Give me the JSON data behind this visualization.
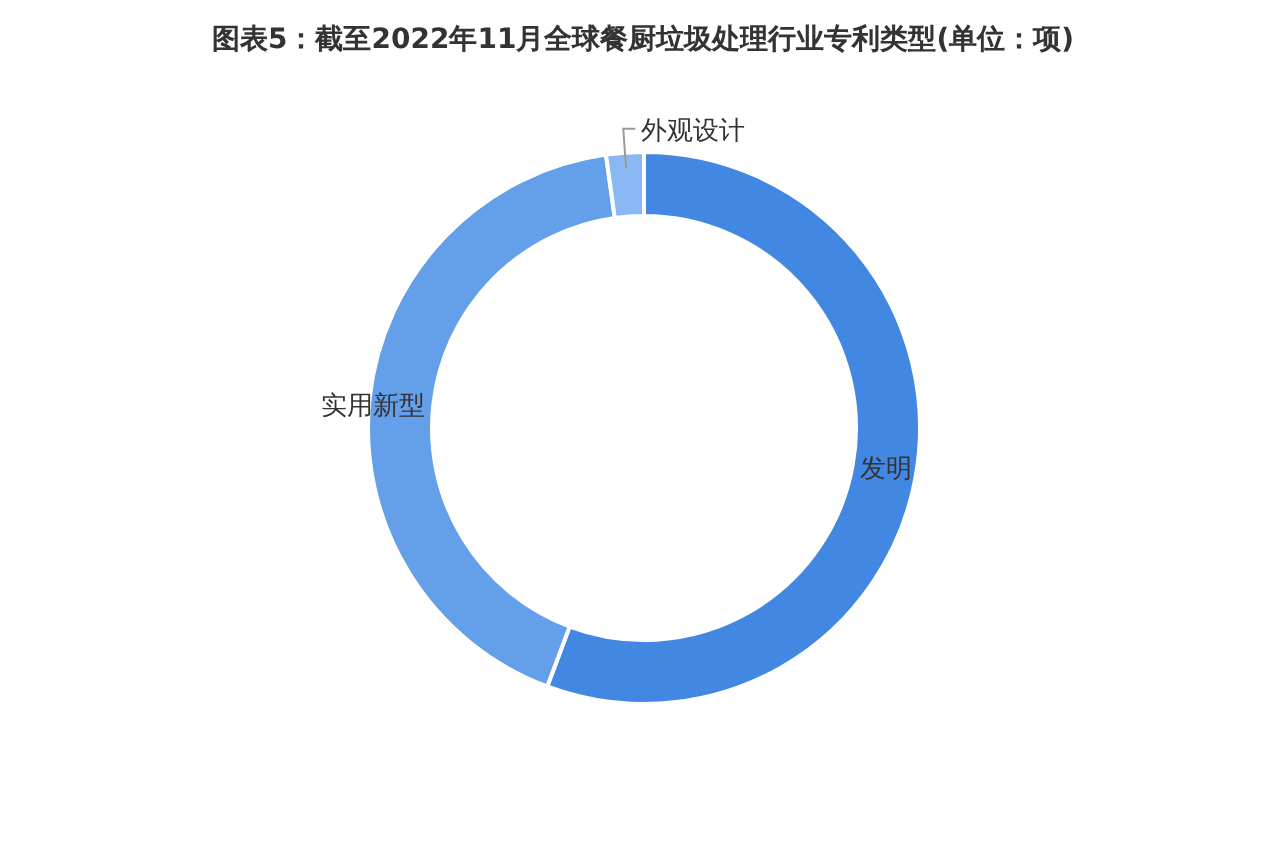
{
  "chart_data": {
    "type": "donut",
    "title": "图表5：截至2022年11月全球餐厨垃圾处理行业专利类型(单位：项)",
    "categories": [
      "发明",
      "实用新型",
      "外观设计"
    ],
    "values": [
      55.7,
      42.1,
      2.2
    ],
    "colors": [
      "#4287e2",
      "#649fea",
      "#8ab8f2"
    ],
    "legend": false
  }
}
